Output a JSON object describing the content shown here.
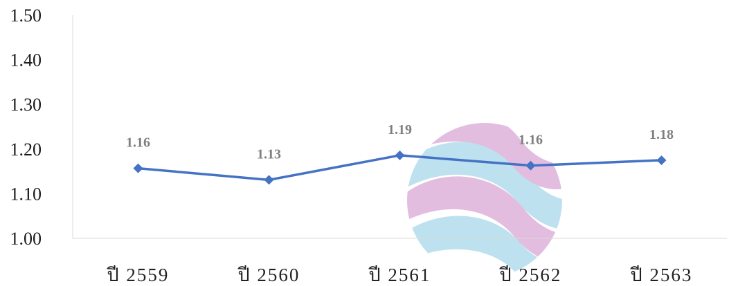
{
  "chart_data": {
    "type": "line",
    "categories": [
      "ปี 2559",
      "ปี 2560",
      "ปี 2561",
      "ปี 2562",
      "ปี 2563"
    ],
    "series": [
      {
        "values": [
          1.16,
          1.13,
          1.19,
          1.16,
          1.18
        ],
        "plotted": [
          1.157,
          1.131,
          1.186,
          1.163,
          1.175
        ],
        "data_labels": [
          "1.16",
          "1.13",
          "1.19",
          "1.16",
          "1.18"
        ]
      }
    ],
    "y_ticks": [
      "1.50",
      "1.40",
      "1.30",
      "1.20",
      "1.10",
      "1.00"
    ],
    "ylim": [
      1.0,
      1.5
    ],
    "grid": false,
    "legend": "none",
    "colors": {
      "line": "#4472C4",
      "marker": "#4472C4",
      "data_label": "#7f7f7f",
      "axis": "#d9d9d9",
      "watermark_purple": "#d9a8d6",
      "watermark_blue": "#a9d8ea"
    }
  }
}
